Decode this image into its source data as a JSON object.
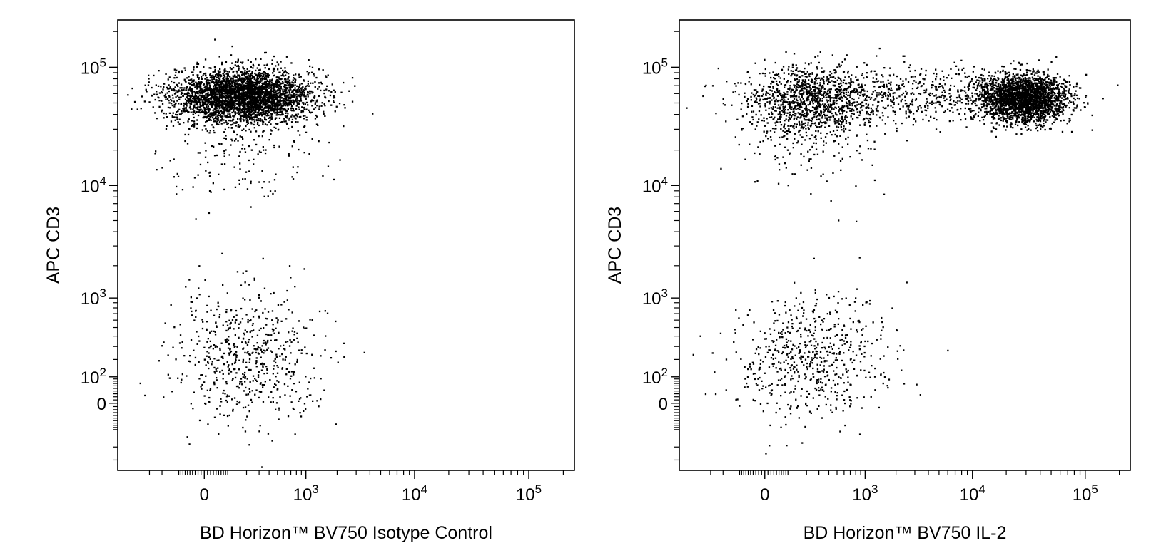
{
  "chart_data": [
    {
      "type": "scatter",
      "panel": "left",
      "xlabel": "BD Horizon™ BV750 Isotype Control",
      "ylabel": "APC CD3",
      "x_scale": "biexponential",
      "y_scale": "biexponential",
      "x_ticks": [
        {
          "value": 0,
          "base": "0",
          "exp": ""
        },
        {
          "value": 1000,
          "base": "10",
          "exp": "3"
        },
        {
          "value": 10000,
          "base": "10",
          "exp": "4"
        },
        {
          "value": 100000,
          "base": "10",
          "exp": "5"
        }
      ],
      "y_ticks": [
        {
          "value": 100000,
          "base": "10",
          "exp": "5"
        },
        {
          "value": 10000,
          "base": "10",
          "exp": "4"
        },
        {
          "value": 1000,
          "base": "10",
          "exp": "3"
        },
        {
          "value": 100,
          "base": "10",
          "exp": "2"
        },
        {
          "value": 0,
          "base": "0",
          "exp": ""
        }
      ],
      "xlim": [
        -700,
        250000
      ],
      "ylim": [
        -400,
        250000
      ],
      "grid": false,
      "populations": [
        {
          "x_center": 170,
          "x_spread": 0.55,
          "y_center": 58000,
          "y_spread": 0.22,
          "count": 3500
        },
        {
          "x_center": 170,
          "x_spread": 0.6,
          "y_center": 30000,
          "y_spread": 0.55,
          "count": 260
        },
        {
          "x_center": 200,
          "x_spread": 0.6,
          "y_center": 230,
          "y_spread": 0.55,
          "count": 620
        }
      ]
    },
    {
      "type": "scatter",
      "panel": "right",
      "xlabel": "BD Horizon™ BV750 IL-2",
      "ylabel": "APC CD3",
      "x_scale": "biexponential",
      "y_scale": "biexponential",
      "x_ticks": [
        {
          "value": 0,
          "base": "0",
          "exp": ""
        },
        {
          "value": 1000,
          "base": "10",
          "exp": "3"
        },
        {
          "value": 10000,
          "base": "10",
          "exp": "4"
        },
        {
          "value": 100000,
          "base": "10",
          "exp": "5"
        }
      ],
      "y_ticks": [
        {
          "value": 100000,
          "base": "10",
          "exp": "5"
        },
        {
          "value": 10000,
          "base": "10",
          "exp": "4"
        },
        {
          "value": 1000,
          "base": "10",
          "exp": "3"
        },
        {
          "value": 100,
          "base": "10",
          "exp": "2"
        },
        {
          "value": 0,
          "base": "0",
          "exp": ""
        }
      ],
      "xlim": [
        -700,
        250000
      ],
      "ylim": [
        -400,
        250000
      ],
      "grid": false,
      "populations": [
        {
          "x_center": 28000,
          "x_spread": 0.35,
          "y_center": 55000,
          "y_spread": 0.2,
          "count": 2400
        },
        {
          "x_center": 3500,
          "x_spread": 1.0,
          "y_center": 60000,
          "y_spread": 0.22,
          "count": 650
        },
        {
          "x_center": 200,
          "x_spread": 0.55,
          "y_center": 52000,
          "y_spread": 0.3,
          "count": 1100
        },
        {
          "x_center": 200,
          "x_spread": 0.6,
          "y_center": 25000,
          "y_spread": 0.5,
          "count": 150
        },
        {
          "x_center": 200,
          "x_spread": 0.6,
          "y_center": 220,
          "y_spread": 0.55,
          "count": 620
        }
      ]
    }
  ]
}
